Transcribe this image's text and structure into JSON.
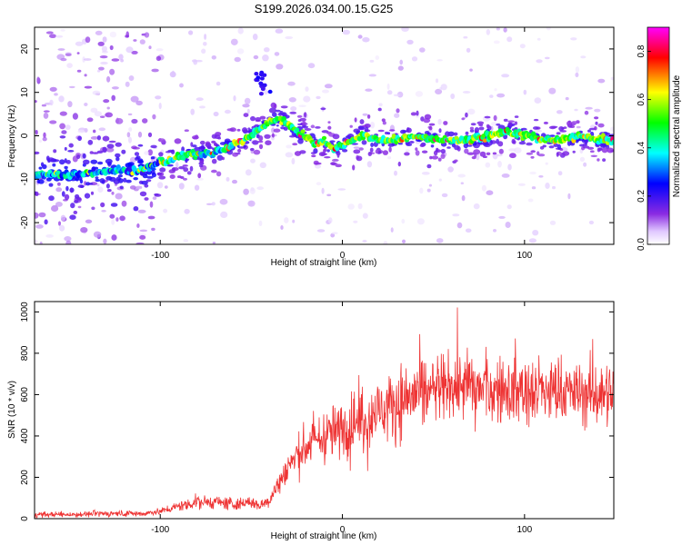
{
  "title": "S199.2026.034.00.15.G25",
  "chart_data": [
    {
      "type": "heatmap",
      "title": "S199.2026.034.00.15.G25",
      "xlabel": "Height of straight line (km)",
      "ylabel": "Frequency (Hz)",
      "xlim": [
        -169,
        149
      ],
      "ylim": [
        -25,
        25
      ],
      "xticks": [
        -100,
        0,
        100
      ],
      "yticks": [
        -20,
        -10,
        0,
        10,
        20
      ],
      "colorbar": {
        "label": "Normalized spectral amplitude",
        "range": [
          0,
          0.9
        ],
        "ticks": [
          "0.0",
          "0.2",
          "0.4",
          "0.6",
          "0.8"
        ],
        "colormap": [
          "#ffffff",
          "#e0c8ff",
          "#8a2be2",
          "#0000ff",
          "#00ffff",
          "#00ff00",
          "#ffff00",
          "#ff0000",
          "#ff00ff"
        ]
      },
      "ridge": {
        "name": "dominant frequency track",
        "x": [
          -169,
          -150,
          -130,
          -110,
          -100,
          -90,
          -80,
          -70,
          -60,
          -50,
          -40,
          -35,
          -30,
          -25,
          -20,
          -15,
          -10,
          -5,
          0,
          10,
          20,
          30,
          40,
          50,
          60,
          70,
          80,
          90,
          100,
          110,
          120,
          130,
          140,
          149
        ],
        "y": [
          -9,
          -9,
          -8,
          -8,
          -6,
          -5,
          -4,
          -4,
          -2,
          0,
          3,
          4,
          3,
          1,
          0,
          -2,
          -1,
          -3,
          -2,
          0,
          -1,
          -1,
          0,
          -1,
          -1,
          -1,
          0,
          1,
          0,
          -1,
          -1,
          0,
          -1,
          -1
        ]
      },
      "blob": {
        "x": -45,
        "y": 12
      }
    },
    {
      "type": "line",
      "xlabel": "Height of straight line (km)",
      "ylabel": "SNR (10 * v/v)",
      "xlim": [
        -169,
        149
      ],
      "ylim": [
        0,
        1050
      ],
      "xticks": [
        -100,
        0,
        100
      ],
      "yticks": [
        0,
        200,
        400,
        600,
        800,
        1000
      ],
      "series": [
        {
          "name": "SNR",
          "color": "#ee3333",
          "x": [
            -169,
            -150,
            -130,
            -110,
            -100,
            -90,
            -80,
            -70,
            -60,
            -50,
            -45,
            -40,
            -30,
            -20,
            -10,
            0,
            10,
            20,
            30,
            40,
            50,
            60,
            70,
            80,
            90,
            100,
            110,
            120,
            130,
            140,
            149
          ],
          "y": [
            20,
            20,
            25,
            25,
            35,
            60,
            80,
            80,
            70,
            80,
            60,
            90,
            250,
            350,
            400,
            430,
            480,
            520,
            560,
            600,
            620,
            640,
            640,
            620,
            620,
            620,
            610,
            620,
            600,
            600,
            620
          ]
        }
      ]
    }
  ]
}
